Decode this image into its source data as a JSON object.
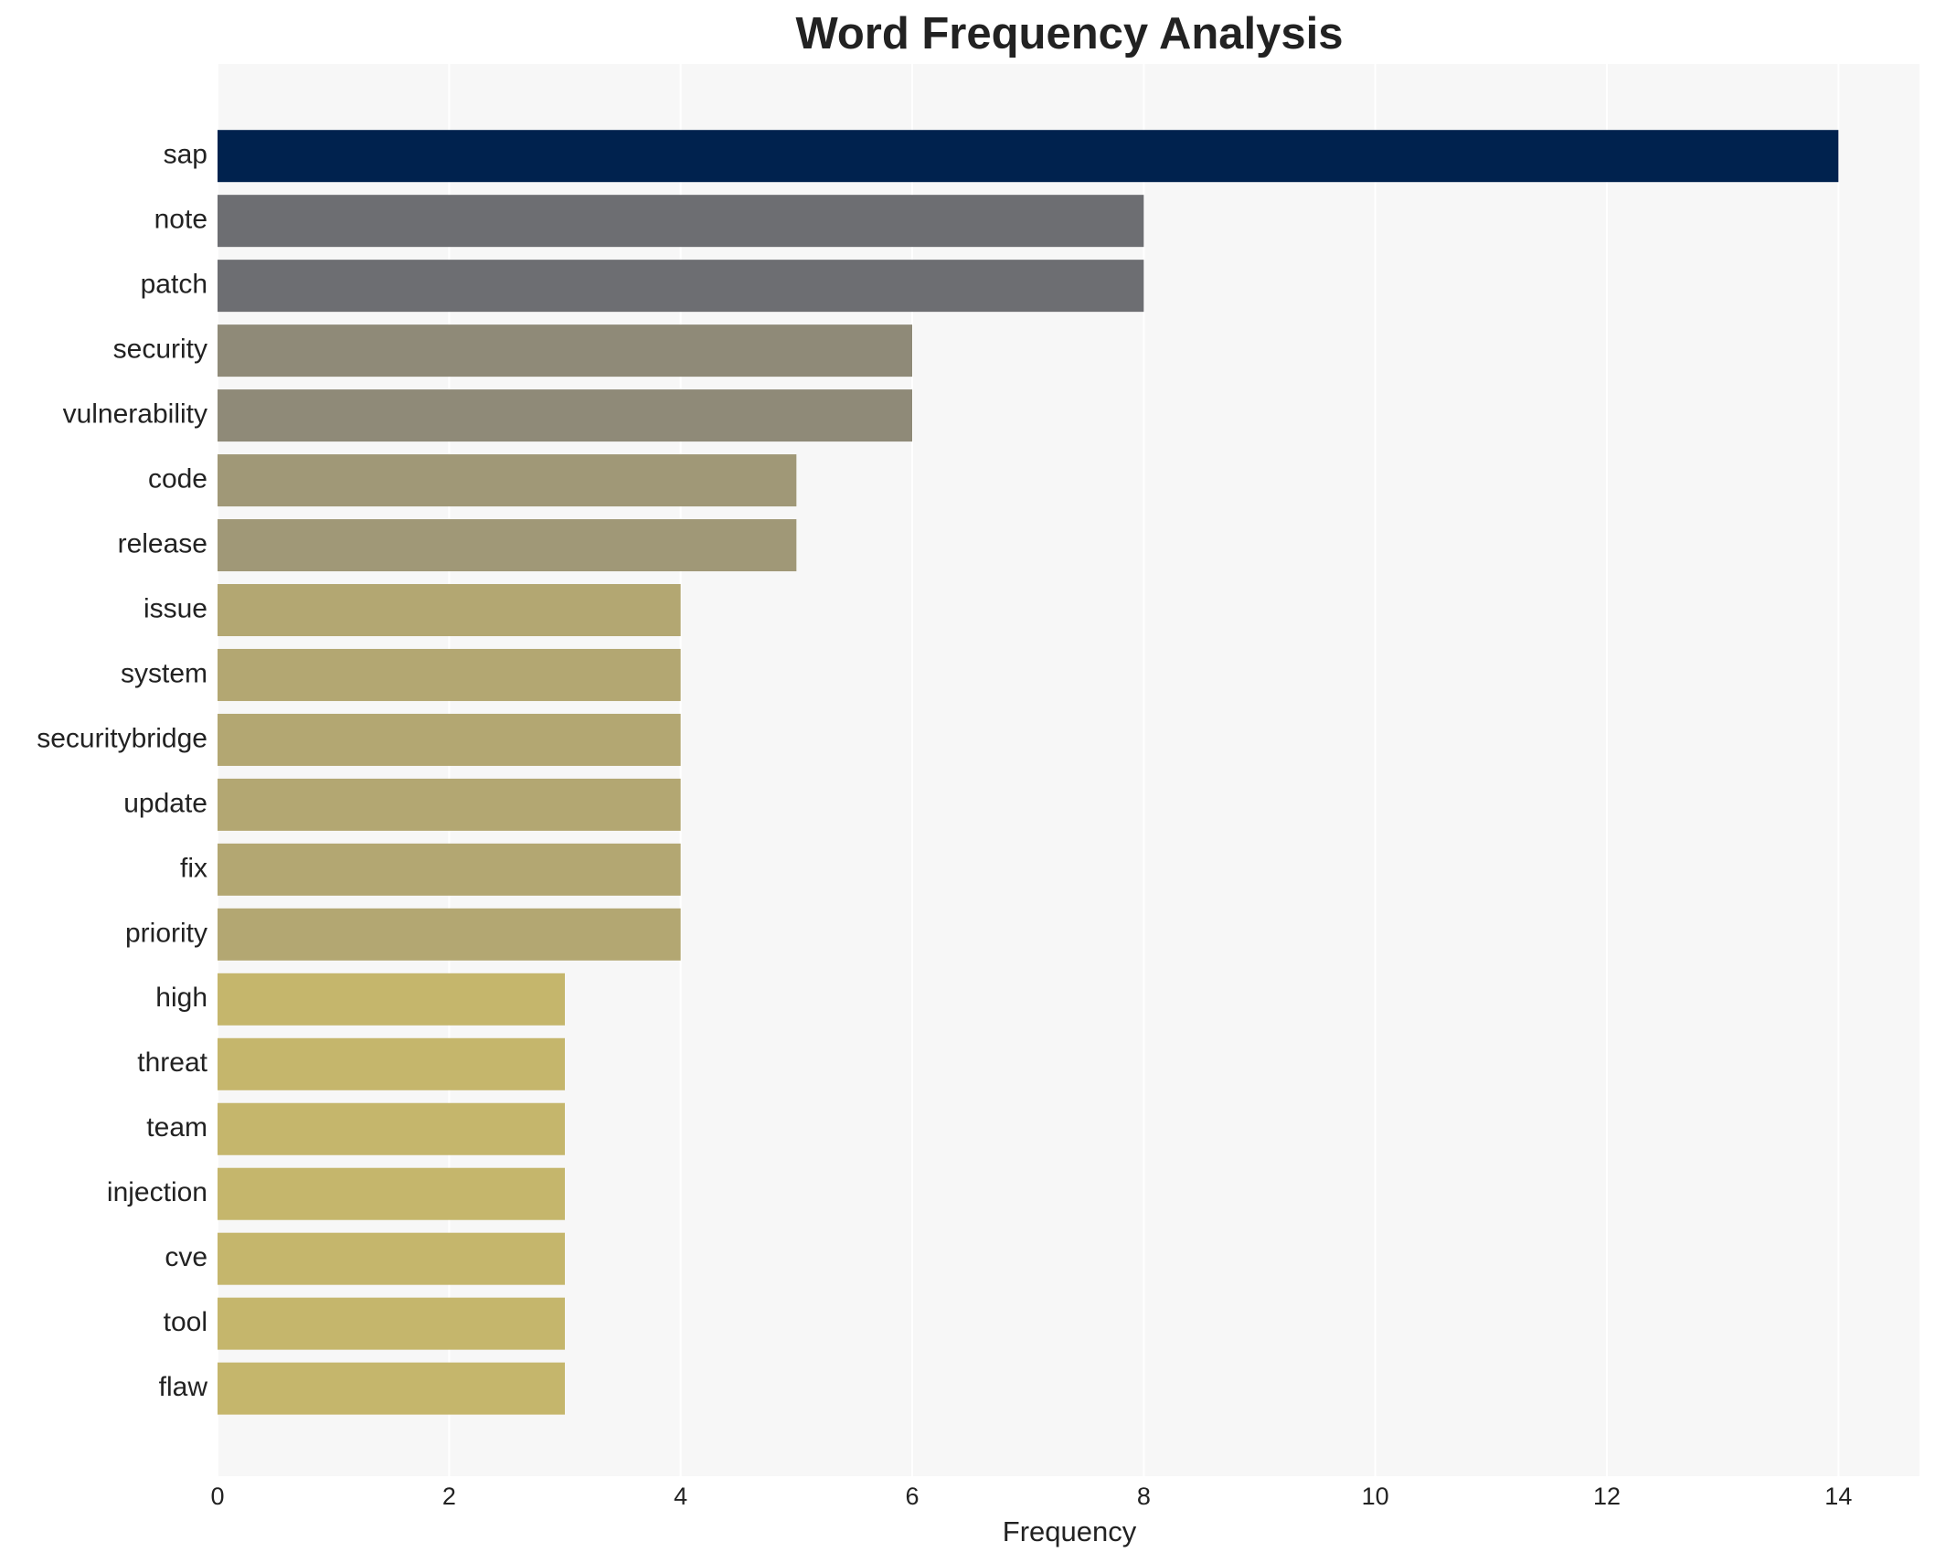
{
  "chart_data": {
    "type": "barh",
    "title": "Word Frequency Analysis",
    "x_label": "Frequency",
    "categories": [
      "sap",
      "note",
      "patch",
      "security",
      "vulnerability",
      "code",
      "release",
      "issue",
      "system",
      "securitybridge",
      "update",
      "fix",
      "priority",
      "high",
      "threat",
      "team",
      "injection",
      "cve",
      "tool",
      "flaw"
    ],
    "values": [
      14,
      8,
      8,
      6,
      6,
      5,
      5,
      4,
      4,
      4,
      4,
      4,
      4,
      3,
      3,
      3,
      3,
      3,
      3,
      3
    ],
    "colors": [
      "#00224e",
      "#6d6e72",
      "#6d6e72",
      "#8f8a78",
      "#8f8a78",
      "#a09877",
      "#a09877",
      "#b3a772",
      "#b3a772",
      "#b3a772",
      "#b3a772",
      "#b3a772",
      "#b3a772",
      "#c5b66c",
      "#c5b66c",
      "#c5b66c",
      "#c5b66c",
      "#c5b66c",
      "#c5b66c",
      "#c5b66c"
    ],
    "xlim": [
      0,
      14.7
    ],
    "xticks": [
      0,
      2,
      4,
      6,
      8,
      10,
      12,
      14
    ],
    "grid": true
  }
}
